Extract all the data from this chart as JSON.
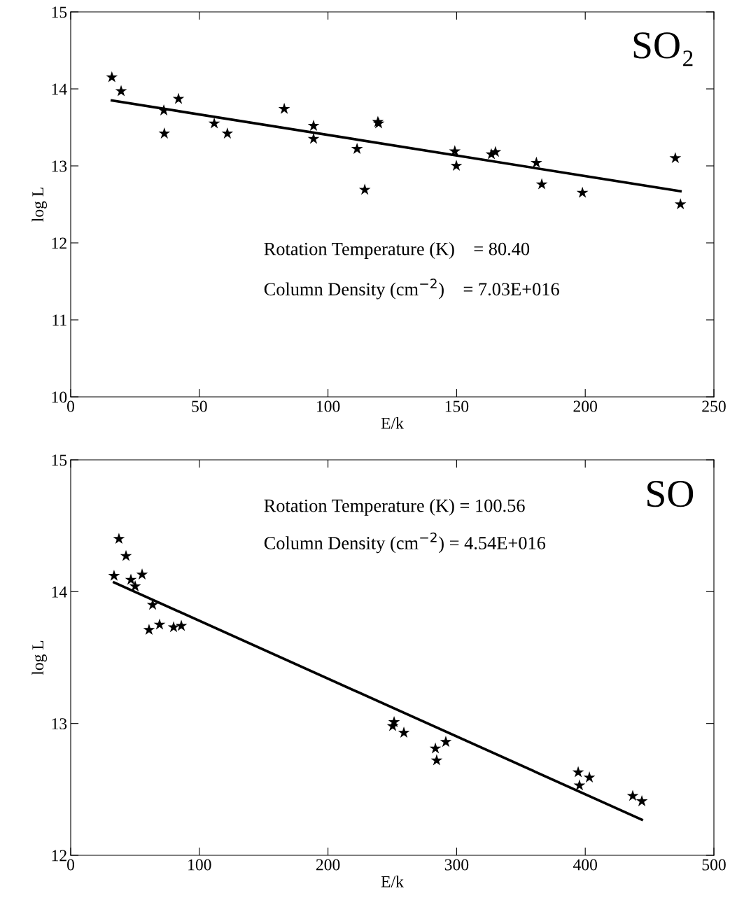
{
  "chart_data": [
    {
      "type": "scatter",
      "title": "SO₂",
      "xlabel": "E/k",
      "ylabel": "log L",
      "xlim": [
        0,
        250
      ],
      "xticks": [
        0,
        50,
        100,
        150,
        200,
        250
      ],
      "ylim": [
        10,
        15
      ],
      "yticks": [
        10,
        11,
        12,
        13,
        14,
        15
      ],
      "marker": "star",
      "grid": false,
      "legend": false,
      "annotations": [
        "Rotation Temperature (K)    = 80.40",
        "Column Density (cm$^{−2}$)    = 7.03E+016"
      ],
      "series": [
        {
          "color": "#000000",
          "x": [
            16.0,
            19.6,
            36.2,
            36.4,
            41.9,
            55.8,
            60.9,
            83.0,
            94.4,
            94.4,
            111.3,
            114.3,
            119.4,
            119.7,
            149.3,
            149.9,
            163.5,
            165.1,
            181.0,
            183.1,
            198.9,
            235.0,
            237.0
          ],
          "values": [
            14.15,
            13.97,
            13.72,
            13.42,
            13.87,
            13.55,
            13.42,
            13.74,
            13.52,
            13.35,
            13.22,
            12.69,
            13.57,
            13.55,
            13.19,
            13.0,
            13.15,
            13.18,
            13.04,
            12.76,
            12.65,
            13.1,
            12.5
          ]
        },
        {
          "type": "line",
          "color": "#000000",
          "marker": "none",
          "x": [
            16.0,
            237.0
          ],
          "values": [
            13.85,
            12.67
          ]
        }
      ]
    },
    {
      "type": "scatter",
      "title": "SO",
      "xlabel": "E/k",
      "ylabel": "log L",
      "xlim": [
        0,
        500
      ],
      "xticks": [
        0,
        100,
        200,
        300,
        400,
        500
      ],
      "ylim": [
        12,
        15
      ],
      "yticks": [
        12,
        13,
        14,
        15
      ],
      "marker": "star",
      "grid": false,
      "legend": false,
      "annotations": [
        "Rotation Temperature (K) = 100.56",
        "Column Density (cm$^{−2}$) = 4.54E+016"
      ],
      "series": [
        {
          "color": "#000000",
          "x": [
            33.7,
            37.5,
            43.0,
            46.8,
            50.1,
            55.5,
            63.7,
            60.9,
            69.1,
            80.0,
            86.0,
            251.4,
            250.3,
            259.0,
            283.5,
            284.5,
            291.6,
            394.5,
            395.5,
            403.2,
            436.9,
            444.0
          ],
          "values": [
            14.12,
            14.4,
            14.27,
            14.09,
            14.04,
            14.13,
            13.9,
            13.71,
            13.75,
            13.73,
            13.74,
            13.01,
            12.98,
            12.93,
            12.81,
            12.72,
            12.86,
            12.63,
            12.53,
            12.59,
            12.45,
            12.41
          ]
        },
        {
          "type": "line",
          "color": "#000000",
          "marker": "none",
          "x": [
            33.7,
            444.0
          ],
          "values": [
            14.07,
            12.27
          ]
        }
      ]
    }
  ]
}
